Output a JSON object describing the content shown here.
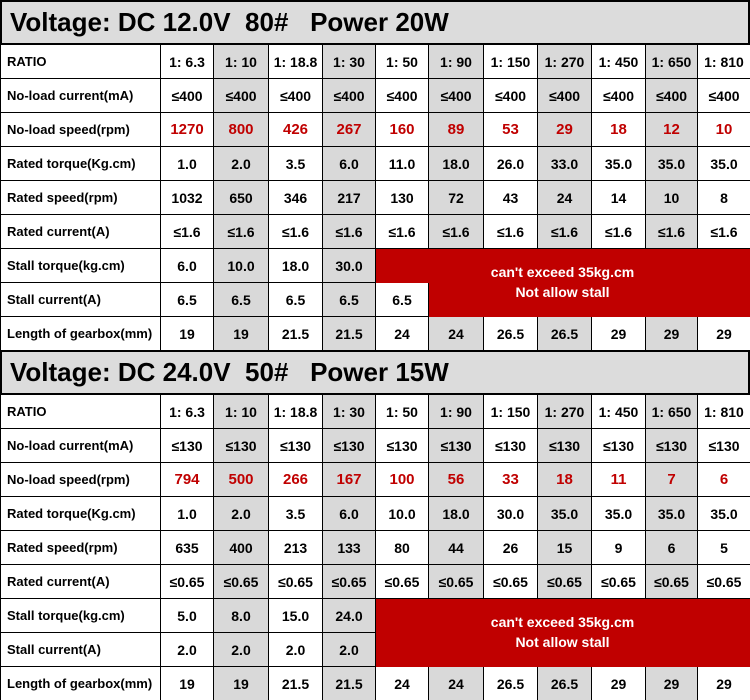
{
  "sections": [
    {
      "title": "Voltage: DC 12.0V  80#   Power 20W",
      "header": {
        "label": "RATIO",
        "ratios": [
          "1: 6.3",
          "1: 10",
          "1: 18.8",
          "1: 30",
          "1: 50",
          "1: 90",
          "1: 150",
          "1: 270",
          "1: 450",
          "1: 650",
          "1: 810"
        ]
      },
      "rows": [
        {
          "label": "No-load current(mA)",
          "values": [
            "≤400",
            "≤400",
            "≤400",
            "≤400",
            "≤400",
            "≤400",
            "≤400",
            "≤400",
            "≤400",
            "≤400",
            "≤400"
          ]
        },
        {
          "label": "No-load speed(rpm)",
          "values": [
            "1270",
            "800",
            "426",
            "267",
            "160",
            "89",
            "53",
            "29",
            "18",
            "12",
            "10"
          ]
        },
        {
          "label": "Rated torque(Kg.cm)",
          "values": [
            "1.0",
            "2.0",
            "3.5",
            "6.0",
            "11.0",
            "18.0",
            "26.0",
            "33.0",
            "35.0",
            "35.0",
            "35.0"
          ]
        },
        {
          "label": "Rated speed(rpm)",
          "values": [
            "1032",
            "650",
            "346",
            "217",
            "130",
            "72",
            "43",
            "24",
            "14",
            "10",
            "8"
          ]
        },
        {
          "label": "Rated current(A)",
          "values": [
            "≤1.6",
            "≤1.6",
            "≤1.6",
            "≤1.6",
            "≤1.6",
            "≤1.6",
            "≤1.6",
            "≤1.6",
            "≤1.6",
            "≤1.6",
            "≤1.6"
          ]
        },
        {
          "label": "Stall torque(kg.cm)",
          "values": [
            "6.0",
            "10.0",
            "18.0",
            "30.0"
          ]
        },
        {
          "label": "Stall current(A)",
          "values": [
            "6.5",
            "6.5",
            "6.5",
            "6.5",
            "6.5"
          ]
        },
        {
          "label": "Length of gearbox(mm)",
          "values": [
            "19",
            "19",
            "21.5",
            "21.5",
            "24",
            "24",
            "26.5",
            "26.5",
            "29",
            "29",
            "29"
          ]
        }
      ],
      "note": [
        "can't exceed 35kg.cm",
        "Not allow stall"
      ]
    },
    {
      "title": "Voltage: DC 24.0V  50#   Power 15W",
      "header": {
        "label": "RATIO",
        "ratios": [
          "1: 6.3",
          "1: 10",
          "1: 18.8",
          "1: 30",
          "1: 50",
          "1: 90",
          "1: 150",
          "1: 270",
          "1: 450",
          "1: 650",
          "1: 810"
        ]
      },
      "rows": [
        {
          "label": "No-load current(mA)",
          "values": [
            "≤130",
            "≤130",
            "≤130",
            "≤130",
            "≤130",
            "≤130",
            "≤130",
            "≤130",
            "≤130",
            "≤130",
            "≤130"
          ]
        },
        {
          "label": "No-load speed(rpm)",
          "values": [
            "794",
            "500",
            "266",
            "167",
            "100",
            "56",
            "33",
            "18",
            "11",
            "7",
            "6"
          ]
        },
        {
          "label": "Rated torque(Kg.cm)",
          "values": [
            "1.0",
            "2.0",
            "3.5",
            "6.0",
            "10.0",
            "18.0",
            "30.0",
            "35.0",
            "35.0",
            "35.0",
            "35.0"
          ]
        },
        {
          "label": "Rated speed(rpm)",
          "values": [
            "635",
            "400",
            "213",
            "133",
            "80",
            "44",
            "26",
            "15",
            "9",
            "6",
            "5"
          ]
        },
        {
          "label": "Rated current(A)",
          "values": [
            "≤0.65",
            "≤0.65",
            "≤0.65",
            "≤0.65",
            "≤0.65",
            "≤0.65",
            "≤0.65",
            "≤0.65",
            "≤0.65",
            "≤0.65",
            "≤0.65"
          ]
        },
        {
          "label": "Stall torque(kg.cm)",
          "values": [
            "5.0",
            "8.0",
            "15.0",
            "24.0"
          ]
        },
        {
          "label": "Stall current(A)",
          "values": [
            "2.0",
            "2.0",
            "2.0",
            "2.0"
          ]
        },
        {
          "label": "Length of gearbox(mm)",
          "values": [
            "19",
            "19",
            "21.5",
            "21.5",
            "24",
            "24",
            "26.5",
            "26.5",
            "29",
            "29",
            "29"
          ]
        }
      ],
      "note": [
        "can't exceed 35kg.cm",
        "Not allow stall"
      ]
    }
  ]
}
